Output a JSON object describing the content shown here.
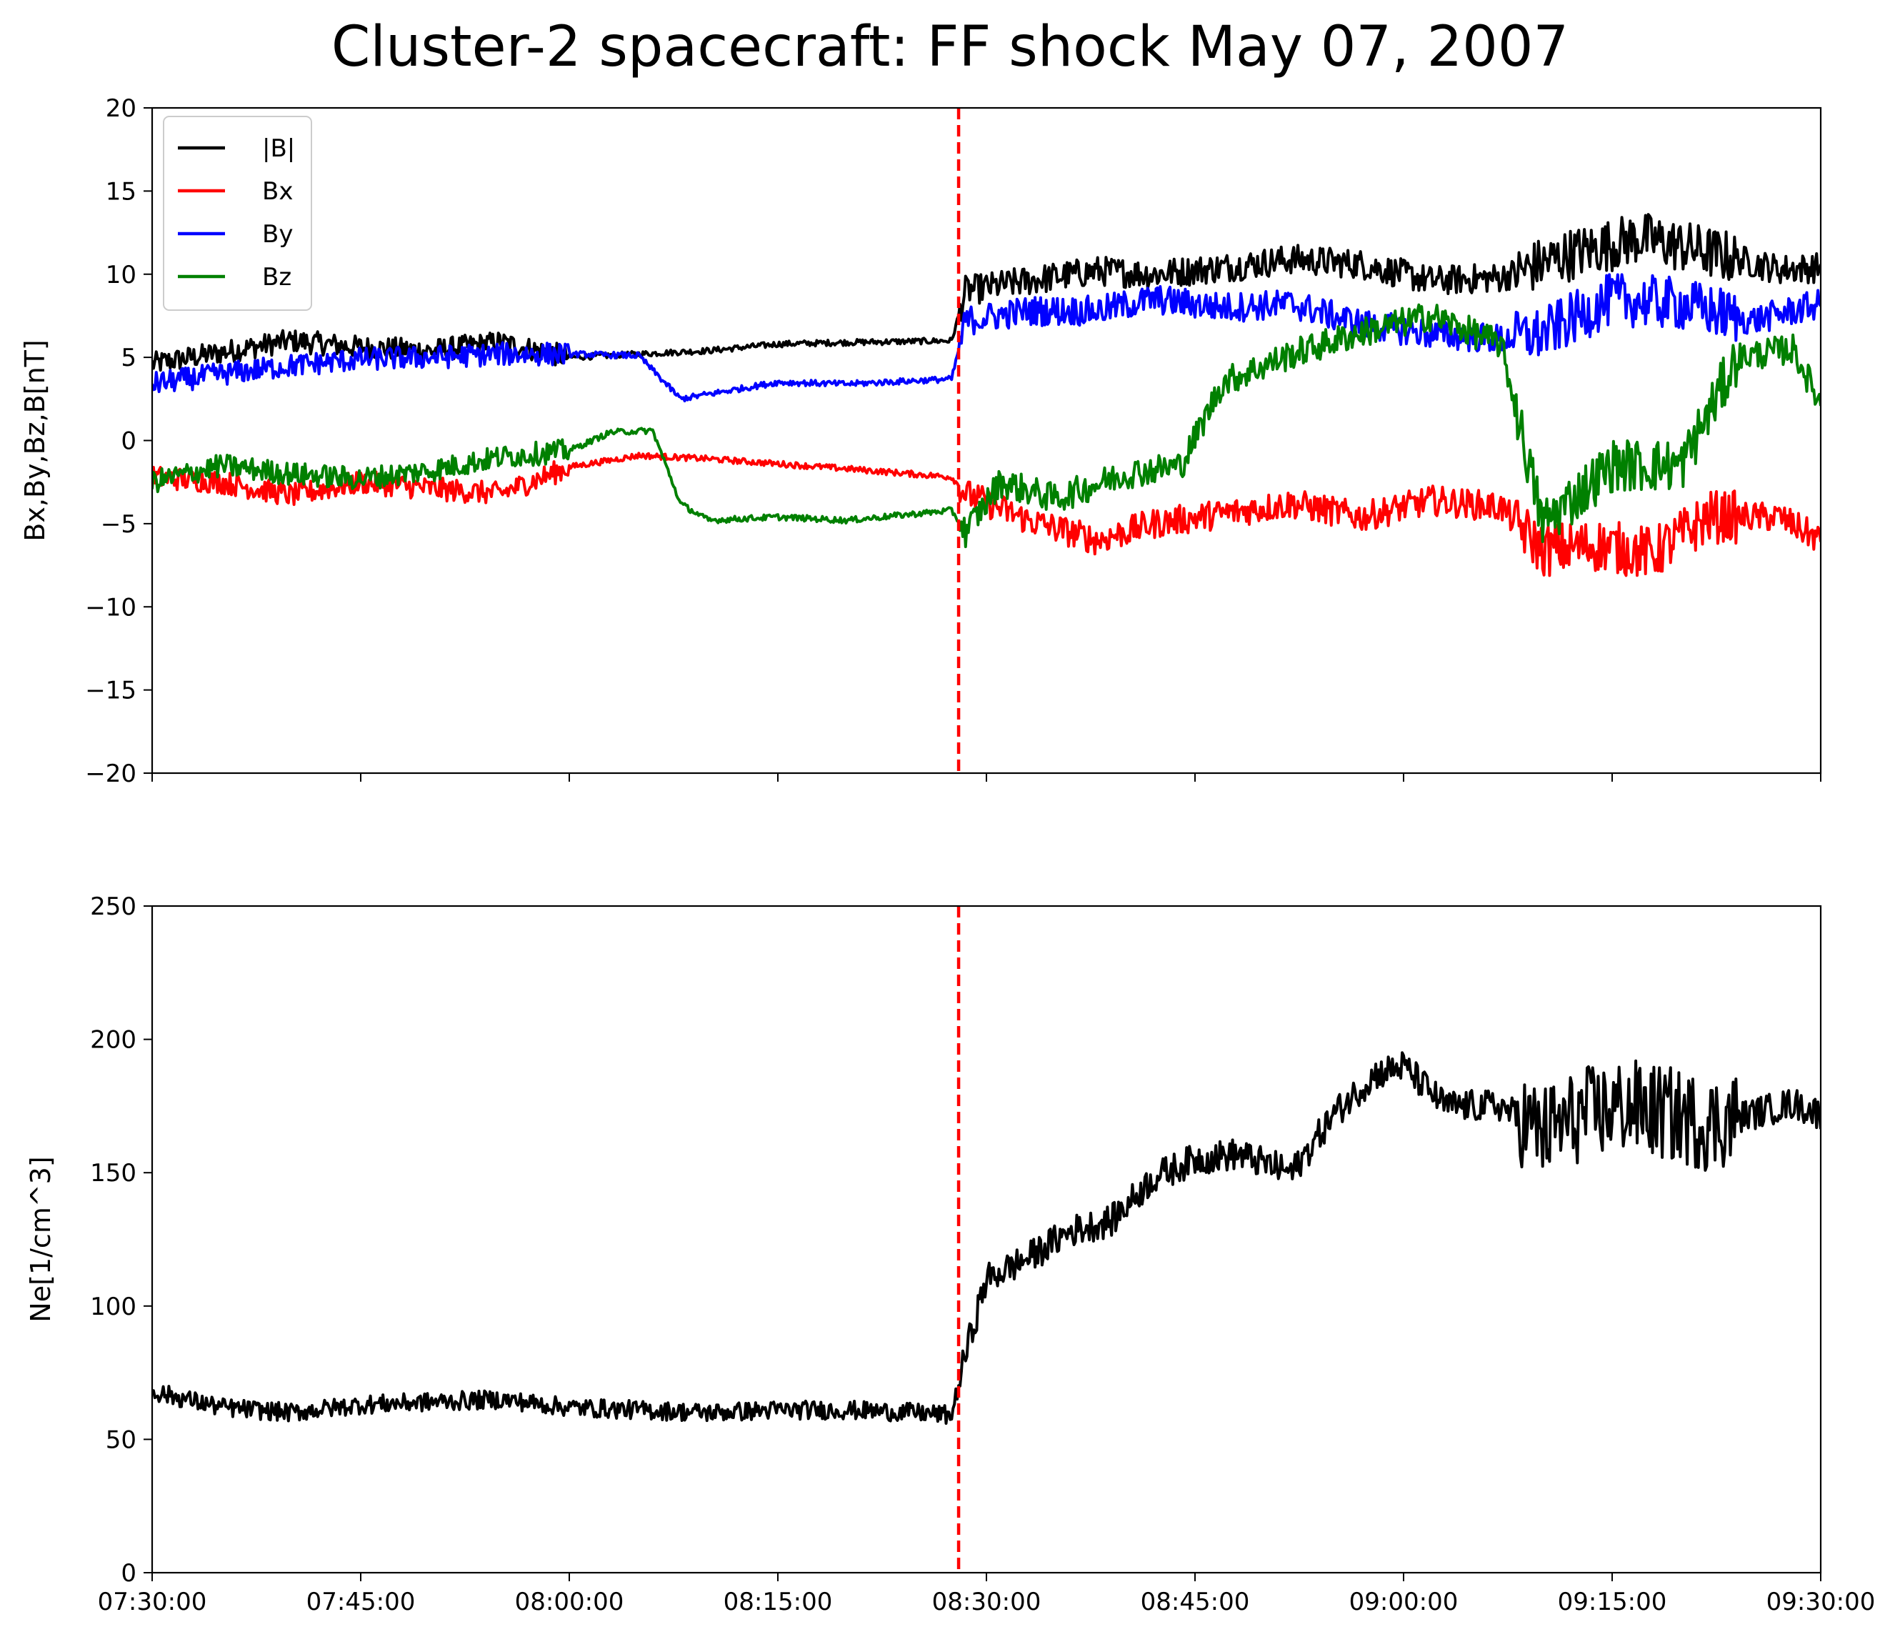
{
  "title": "Cluster-2 spacecraft: FF shock May 07, 2007",
  "chart_data": [
    {
      "type": "line",
      "panel": "top",
      "ylabel": "Bx,By,Bz,B[nT]",
      "xlabel": "",
      "ylim": [
        -20,
        20
      ],
      "yticks": [
        -20,
        -15,
        -10,
        -5,
        0,
        5,
        10,
        15,
        20
      ],
      "ytick_labels": [
        "−20",
        "−15",
        "−10",
        "−5",
        "0",
        "5",
        "10",
        "15",
        "20"
      ],
      "xlim": [
        "07:30:00",
        "09:30:00"
      ],
      "xticks": [
        "07:30:00",
        "07:45:00",
        "08:00:00",
        "08:15:00",
        "08:30:00",
        "08:45:00",
        "09:00:00",
        "09:15:00",
        "09:30:00"
      ],
      "grid": false,
      "legend": "top-left",
      "vline": {
        "x": "08:28:00",
        "color": "#ff0000",
        "style": "dashed"
      },
      "series": [
        {
          "name": "|B|",
          "color": "#000000",
          "x": [
            "07:30:00",
            "07:35:00",
            "07:40:00",
            "07:45:00",
            "07:50:00",
            "07:55:00",
            "08:00:00",
            "08:05:00",
            "08:10:00",
            "08:15:00",
            "08:20:00",
            "08:27:30",
            "08:28:30",
            "08:33:00",
            "08:38:00",
            "08:42:00",
            "08:47:00",
            "08:52:00",
            "08:57:00",
            "09:02:00",
            "09:07:00",
            "09:12:00",
            "09:17:00",
            "09:22:00",
            "09:27:00",
            "09:30:00"
          ],
          "values": [
            4.6,
            5.3,
            6.0,
            5.6,
            5.4,
            5.9,
            5.0,
            5.2,
            5.4,
            5.8,
            5.9,
            6.0,
            9.0,
            9.6,
            10.2,
            10.0,
            10.4,
            10.9,
            10.6,
            9.6,
            9.8,
            11.2,
            12.2,
            11.3,
            10.3,
            10.4
          ]
        },
        {
          "name": "Bx",
          "color": "#ff0000",
          "x": [
            "07:30:00",
            "07:35:00",
            "07:40:00",
            "07:45:00",
            "07:50:00",
            "07:55:00",
            "08:00:00",
            "08:05:00",
            "08:10:00",
            "08:15:00",
            "08:20:00",
            "08:27:30",
            "08:28:30",
            "08:33:00",
            "08:38:00",
            "08:42:00",
            "08:47:00",
            "08:52:00",
            "08:57:00",
            "09:02:00",
            "09:07:00",
            "09:10:00",
            "09:14:00",
            "09:18:00",
            "09:22:00",
            "09:27:00",
            "09:30:00"
          ],
          "values": [
            -2.2,
            -2.5,
            -3.3,
            -2.5,
            -2.9,
            -3.2,
            -1.6,
            -0.9,
            -1.1,
            -1.4,
            -1.7,
            -2.2,
            -3.2,
            -4.8,
            -6.0,
            -5.0,
            -4.4,
            -3.8,
            -4.6,
            -3.6,
            -4.0,
            -6.6,
            -6.3,
            -6.8,
            -4.6,
            -4.6,
            -6.0
          ]
        },
        {
          "name": "By",
          "color": "#0000ff",
          "x": [
            "07:30:00",
            "07:35:00",
            "07:40:00",
            "07:45:00",
            "07:50:00",
            "07:55:00",
            "08:00:00",
            "08:05:00",
            "08:08:00",
            "08:15:00",
            "08:20:00",
            "08:27:30",
            "08:28:30",
            "08:33:00",
            "08:38:00",
            "08:42:00",
            "08:47:00",
            "08:52:00",
            "08:57:00",
            "09:02:00",
            "09:07:00",
            "09:10:00",
            "09:15:00",
            "09:20:00",
            "09:25:00",
            "09:30:00"
          ],
          "values": [
            3.4,
            4.0,
            4.5,
            4.9,
            5.0,
            5.2,
            5.2,
            5.1,
            2.5,
            3.5,
            3.4,
            3.7,
            7.2,
            7.8,
            7.8,
            8.5,
            8.0,
            8.2,
            7.0,
            6.4,
            6.1,
            6.4,
            8.5,
            8.2,
            7.2,
            8.2
          ]
        },
        {
          "name": "Bz",
          "color": "#008000",
          "x": [
            "07:30:00",
            "07:35:00",
            "07:40:00",
            "07:45:00",
            "07:50:00",
            "07:55:00",
            "08:00:00",
            "08:03:00",
            "08:06:00",
            "08:08:00",
            "08:10:00",
            "08:15:00",
            "08:20:00",
            "08:27:30",
            "08:28:30",
            "08:31:00",
            "08:35:00",
            "08:40:00",
            "08:44:00",
            "08:47:00",
            "08:52:00",
            "08:57:00",
            "09:02:00",
            "09:07:00",
            "09:10:00",
            "09:15:00",
            "09:20:00",
            "09:24:00",
            "09:28:00",
            "09:30:00"
          ],
          "values": [
            -2.5,
            -1.5,
            -2.0,
            -2.3,
            -1.8,
            -1.0,
            -0.6,
            0.5,
            0.6,
            -3.8,
            -4.8,
            -4.6,
            -4.8,
            -4.2,
            -5.5,
            -2.5,
            -3.5,
            -2.0,
            -1.5,
            3.5,
            5.2,
            6.5,
            7.5,
            5.8,
            -5.0,
            -1.5,
            -1.5,
            5.0,
            5.5,
            2.2
          ]
        }
      ]
    },
    {
      "type": "line",
      "panel": "bottom",
      "ylabel": "Ne[1/cm^3]",
      "xlabel": "",
      "ylim": [
        0,
        250
      ],
      "yticks": [
        0,
        50,
        100,
        150,
        200,
        250
      ],
      "ytick_labels": [
        "0",
        "50",
        "100",
        "150",
        "200",
        "250"
      ],
      "xlim": [
        "07:30:00",
        "09:30:00"
      ],
      "xticks": [
        "07:30:00",
        "07:45:00",
        "08:00:00",
        "08:15:00",
        "08:30:00",
        "08:45:00",
        "09:00:00",
        "09:15:00",
        "09:30:00"
      ],
      "xtick_labels": [
        "07:30:00",
        "07:45:00",
        "08:00:00",
        "08:15:00",
        "08:30:00",
        "08:45:00",
        "09:00:00",
        "09:15:00",
        "09:30:00"
      ],
      "grid": false,
      "vline": {
        "x": "08:28:00",
        "color": "#ff0000",
        "style": "dashed"
      },
      "series": [
        {
          "color": "#000000",
          "x": [
            "07:30:00",
            "07:35:00",
            "07:40:00",
            "07:45:00",
            "07:50:00",
            "07:55:00",
            "08:00:00",
            "08:05:00",
            "08:10:00",
            "08:15:00",
            "08:20:00",
            "08:25:00",
            "08:27:30",
            "08:28:30",
            "08:30:00",
            "08:33:00",
            "08:36:00",
            "08:39:00",
            "08:42:00",
            "08:45:00",
            "08:48:00",
            "08:52:00",
            "08:55:00",
            "08:58:00",
            "09:00:00",
            "09:03:00",
            "09:07:00",
            "09:10:00",
            "09:13:00",
            "09:16:00",
            "09:19:00",
            "09:22:00",
            "09:25:00",
            "09:28:00",
            "09:30:00"
          ],
          "values": [
            68,
            62,
            60,
            63,
            64,
            65,
            62,
            61,
            60,
            61,
            61,
            60,
            59,
            82,
            110,
            118,
            128,
            132,
            148,
            155,
            157,
            150,
            172,
            187,
            190,
            175,
            175,
            165,
            172,
            175,
            172,
            168,
            172,
            176,
            172
          ]
        }
      ]
    }
  ]
}
